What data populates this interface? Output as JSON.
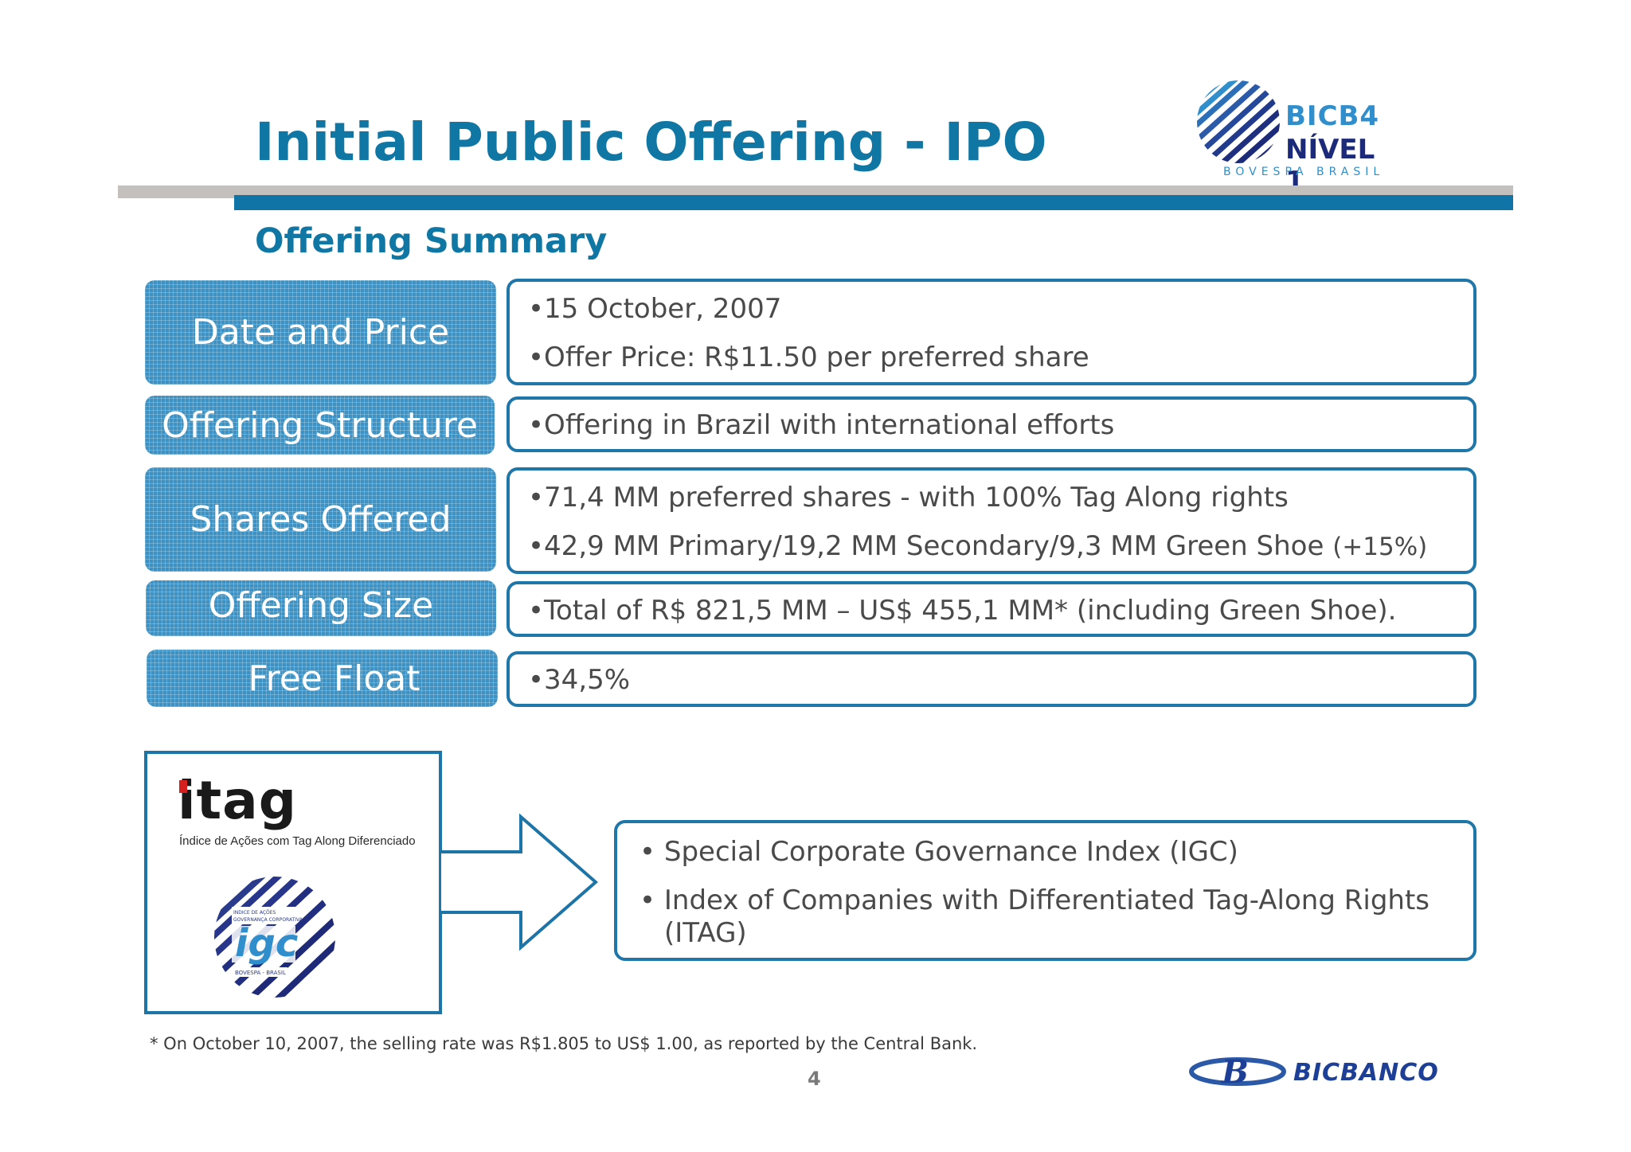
{
  "header": {
    "title": "Initial Public Offering - IPO",
    "subtitle": "Offering Summary"
  },
  "top_logo": {
    "code": "BICB4",
    "level": "NÍVEL 1",
    "exchange": "BOVESPA   BRASIL"
  },
  "rows": [
    {
      "label": "Date and Price",
      "lines": [
        "•15 October, 2007",
        "•Offer Price: R$11.50 per preferred share"
      ]
    },
    {
      "label": "Offering Structure",
      "lines": [
        "•Offering in Brazil with international efforts"
      ]
    },
    {
      "label": "Shares Offered",
      "lines": [
        "•71,4 MM preferred shares - with 100% Tag Along rights",
        "•42,9 MM Primary/19,2 MM Secondary/9,3 MM Green Shoe",
        "(+15%)"
      ]
    },
    {
      "label": "Offering Size",
      "lines": [
        "•Total of R$ 821,5 MM – US$ 455,1 MM* (including Green Shoe)."
      ]
    },
    {
      "label": "Free Float",
      "lines": [
        "•34,5%"
      ]
    }
  ],
  "index_logos": {
    "itag_name": "itag",
    "itag_subtitle": "Índice de Ações com Tag Along Diferenciado",
    "igc_name": "igc",
    "igc_subtitle": "INDICE DE AÇÕES GOVERNANÇA CORPORATIVA",
    "igc_footer": "BOVESPA - BRASIL"
  },
  "governance": {
    "items": [
      "• Special Corporate Governance Index (IGC)",
      "• Index of Companies with Differentiated Tag-Along Rights",
      "(ITAG)"
    ]
  },
  "footnote": "* On October 10, 2007, the selling rate was R$1.805 to US$ 1.00, as reported by the Central Bank.",
  "page_number": "4",
  "bottom_logo": {
    "name": "BICBANCO"
  },
  "colors": {
    "brand_blue": "#1076a4",
    "label_blue": "#3d92c3",
    "border_blue": "#1e76a9",
    "bar_grey": "#c3c0bd"
  }
}
